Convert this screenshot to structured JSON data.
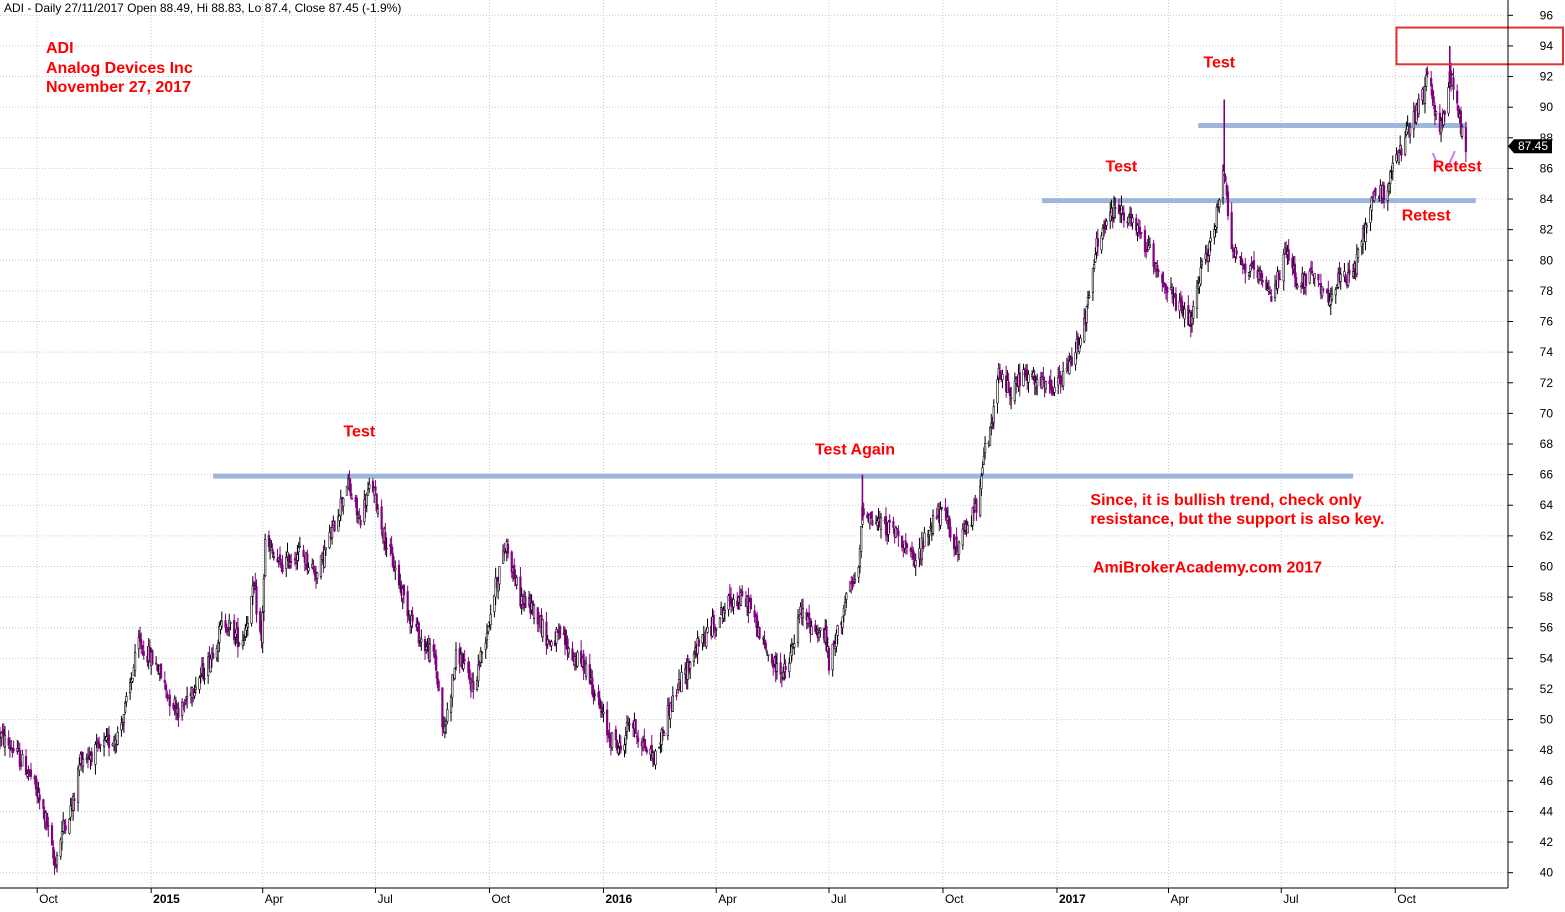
{
  "chart_data": {
    "type": "candlestick",
    "header": "ADI - Daily 27/11/2017 Open 88.49, Hi 88.83, Lo 87.4, Close 87.45 (-1.9%)",
    "title_lines": [
      "ADI",
      "Analog Devices Inc",
      "November 27, 2017"
    ],
    "ylim": [
      39,
      97
    ],
    "y_ticks": [
      40,
      42,
      44,
      46,
      48,
      50,
      52,
      54,
      56,
      58,
      60,
      62,
      64,
      66,
      68,
      70,
      72,
      74,
      76,
      78,
      80,
      82,
      84,
      86,
      88,
      90,
      92,
      94,
      96
    ],
    "x_range": [
      "2014-09-01",
      "2017-12-31"
    ],
    "x_ticks": [
      {
        "label": "Oct",
        "date": "2014-10-01",
        "bold": false
      },
      {
        "label": "2015",
        "date": "2015-01-01",
        "bold": true
      },
      {
        "label": "Apr",
        "date": "2015-04-01",
        "bold": false
      },
      {
        "label": "Jul",
        "date": "2015-07-01",
        "bold": false
      },
      {
        "label": "Oct",
        "date": "2015-10-01",
        "bold": false
      },
      {
        "label": "2016",
        "date": "2016-01-01",
        "bold": true
      },
      {
        "label": "Apr",
        "date": "2016-04-01",
        "bold": false
      },
      {
        "label": "Jul",
        "date": "2016-07-01",
        "bold": false
      },
      {
        "label": "Oct",
        "date": "2016-10-01",
        "bold": false
      },
      {
        "label": "2017",
        "date": "2017-01-01",
        "bold": true
      },
      {
        "label": "Apr",
        "date": "2017-04-01",
        "bold": false
      },
      {
        "label": "Jul",
        "date": "2017-07-01",
        "bold": false
      },
      {
        "label": "Oct",
        "date": "2017-10-01",
        "bold": false
      }
    ],
    "grid": true,
    "colors": {
      "up": "#000000",
      "down": "#800080",
      "trendline": "#9fb6dc",
      "annotation": "#ff0000",
      "grid": "#c8c8c8"
    },
    "price_path": [
      [
        "2014-09-01",
        49
      ],
      [
        "2014-09-12",
        48
      ],
      [
        "2014-09-25",
        46.5
      ],
      [
        "2014-10-08",
        43.5
      ],
      [
        "2014-10-15",
        40.5
      ],
      [
        "2014-10-22",
        43
      ],
      [
        "2014-10-30",
        44.5
      ],
      [
        "2014-11-05",
        47.5
      ],
      [
        "2014-11-20",
        48
      ],
      [
        "2014-12-05",
        49
      ],
      [
        "2014-12-12",
        51
      ],
      [
        "2014-12-22",
        55
      ],
      [
        "2015-01-06",
        53.5
      ],
      [
        "2015-01-15",
        51.5
      ],
      [
        "2015-01-25",
        50.5
      ],
      [
        "2015-02-02",
        52
      ],
      [
        "2015-02-15",
        53.5
      ],
      [
        "2015-03-01",
        56.5
      ],
      [
        "2015-03-15",
        55
      ],
      [
        "2015-03-25",
        58.5
      ],
      [
        "2015-03-31",
        55
      ],
      [
        "2015-04-03",
        61.5
      ],
      [
        "2015-04-15",
        60
      ],
      [
        "2015-05-01",
        61
      ],
      [
        "2015-05-15",
        59.5
      ],
      [
        "2015-05-28",
        62.5
      ],
      [
        "2015-06-08",
        65.5
      ],
      [
        "2015-06-18",
        63
      ],
      [
        "2015-06-28",
        65.5
      ],
      [
        "2015-07-08",
        62
      ],
      [
        "2015-07-20",
        59
      ],
      [
        "2015-07-28",
        57
      ],
      [
        "2015-08-08",
        55
      ],
      [
        "2015-08-18",
        54
      ],
      [
        "2015-08-25",
        49
      ],
      [
        "2015-09-05",
        54.5
      ],
      [
        "2015-09-18",
        52
      ],
      [
        "2015-09-28",
        55.5
      ],
      [
        "2015-10-08",
        59.5
      ],
      [
        "2015-10-15",
        61.5
      ],
      [
        "2015-10-25",
        58
      ],
      [
        "2015-11-08",
        57
      ],
      [
        "2015-11-18",
        55
      ],
      [
        "2015-11-28",
        55.5
      ],
      [
        "2015-12-08",
        54
      ],
      [
        "2015-12-18",
        53.5
      ],
      [
        "2016-01-05",
        49
      ],
      [
        "2016-01-15",
        48
      ],
      [
        "2016-01-22",
        50
      ],
      [
        "2016-02-05",
        48
      ],
      [
        "2016-02-12",
        47.5
      ],
      [
        "2016-02-22",
        50.5
      ],
      [
        "2016-03-01",
        52
      ],
      [
        "2016-03-15",
        54.5
      ],
      [
        "2016-04-01",
        56.5
      ],
      [
        "2016-04-15",
        58
      ],
      [
        "2016-04-28",
        57.5
      ],
      [
        "2016-05-08",
        55
      ],
      [
        "2016-05-18",
        53.5
      ],
      [
        "2016-05-28",
        53
      ],
      [
        "2016-06-08",
        57
      ],
      [
        "2016-06-18",
        56
      ],
      [
        "2016-06-28",
        55.5
      ],
      [
        "2016-07-01",
        53.5
      ],
      [
        "2016-07-06",
        55
      ],
      [
        "2016-07-15",
        58
      ],
      [
        "2016-07-25",
        59.5
      ],
      [
        "2016-07-28",
        64
      ],
      [
        "2016-08-05",
        63
      ],
      [
        "2016-08-18",
        62.5
      ],
      [
        "2016-08-28",
        62
      ],
      [
        "2016-09-08",
        60
      ],
      [
        "2016-09-15",
        61.5
      ],
      [
        "2016-09-25",
        63.5
      ],
      [
        "2016-10-05",
        63
      ],
      [
        "2016-10-12",
        61
      ],
      [
        "2016-10-20",
        62.5
      ],
      [
        "2016-10-28",
        64
      ],
      [
        "2016-11-02",
        67
      ],
      [
        "2016-11-08",
        68.5
      ],
      [
        "2016-11-15",
        72.5
      ],
      [
        "2016-11-25",
        71.5
      ],
      [
        "2016-12-05",
        72.5
      ],
      [
        "2016-12-15",
        72
      ],
      [
        "2016-12-28",
        71.5
      ],
      [
        "2017-01-08",
        72.5
      ],
      [
        "2017-01-15",
        74
      ],
      [
        "2017-01-25",
        76.5
      ],
      [
        "2017-02-02",
        81
      ],
      [
        "2017-02-10",
        82.5
      ],
      [
        "2017-02-20",
        83.5
      ],
      [
        "2017-03-01",
        82.5
      ],
      [
        "2017-03-10",
        81.5
      ],
      [
        "2017-03-20",
        80
      ],
      [
        "2017-04-01",
        78
      ],
      [
        "2017-04-12",
        76.5
      ],
      [
        "2017-04-20",
        76
      ],
      [
        "2017-04-28",
        79.5
      ],
      [
        "2017-05-08",
        82
      ],
      [
        "2017-05-16",
        86
      ],
      [
        "2017-05-22",
        81
      ],
      [
        "2017-06-01",
        79.5
      ],
      [
        "2017-06-12",
        79
      ],
      [
        "2017-06-22",
        77.5
      ],
      [
        "2017-07-05",
        80.5
      ],
      [
        "2017-07-15",
        78.5
      ],
      [
        "2017-07-25",
        79
      ],
      [
        "2017-08-05",
        77.5
      ],
      [
        "2017-08-15",
        78.5
      ],
      [
        "2017-08-28",
        79
      ],
      [
        "2017-09-05",
        81.5
      ],
      [
        "2017-09-12",
        84
      ],
      [
        "2017-09-22",
        84.5
      ],
      [
        "2017-10-02",
        86.5
      ],
      [
        "2017-10-12",
        88.5
      ],
      [
        "2017-10-20",
        90
      ],
      [
        "2017-10-28",
        92
      ],
      [
        "2017-11-03",
        89.5
      ],
      [
        "2017-11-08",
        88.5
      ],
      [
        "2017-11-14",
        92.5
      ],
      [
        "2017-11-22",
        89
      ],
      [
        "2017-11-27",
        87.45
      ]
    ],
    "spikes": [
      {
        "date": "2016-07-28",
        "high": 66
      },
      {
        "date": "2017-05-16",
        "high": 90.5
      },
      {
        "date": "2017-11-14",
        "high": 94
      }
    ],
    "last_close": 87.45,
    "last_close_label": "87.45",
    "trendlines": [
      {
        "from": "2015-02-20",
        "to": "2017-08-28",
        "value": 65.9
      },
      {
        "from": "2016-12-20",
        "to": "2017-12-05",
        "value": 83.9
      },
      {
        "from": "2017-04-25",
        "to": "2017-11-28",
        "value": 88.8
      }
    ],
    "annotations": [
      {
        "text": "Test",
        "date": "2015-06-18",
        "value": 68.5
      },
      {
        "text": "Test Again",
        "date": "2016-07-22",
        "value": 67.3
      },
      {
        "text": "Test",
        "date": "2017-02-22",
        "value": 85.8
      },
      {
        "text": "Test",
        "date": "2017-05-12",
        "value": 92.6
      },
      {
        "text": "Retest",
        "date": "2017-11-20",
        "value": 85.8
      },
      {
        "text": "Retest",
        "date": "2017-10-26",
        "value": 82.6
      }
    ],
    "note_lines": [
      "Since, it is bullish trend, check only",
      "resistance, but the support is also key."
    ],
    "note_anchor": {
      "date": "2017-01-28",
      "value": 64.0
    },
    "watermark": "AmiBrokerAcademy.com  2017",
    "watermark_anchor": {
      "date": "2017-01-30",
      "value": 59.6
    },
    "highlight_box": {
      "from": "2017-10-02",
      "to": "2017-12-31",
      "y1": 92.8,
      "y2": 95.2
    },
    "retest_arrow": {
      "date": "2017-11-10",
      "value": 87
    }
  }
}
